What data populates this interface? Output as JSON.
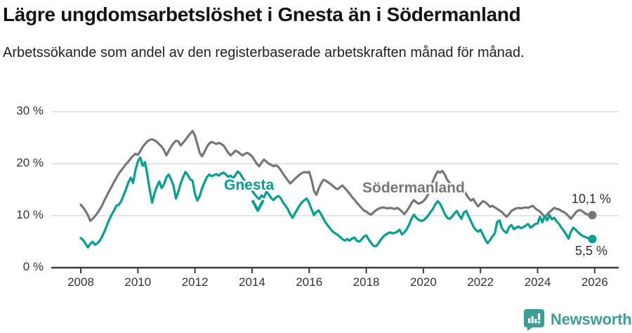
{
  "chart_data": {
    "type": "line",
    "title": "Lägre ungdomsarbetslöshet i Gnesta än i Södermanland",
    "subtitle": "Arbetssökande som andel av den registerbaserade arbetskraften månad för månad.",
    "grid": "horizontal",
    "ylim": [
      0,
      30
    ],
    "xlim": [
      2008,
      2026
    ],
    "x_start_year": 2008,
    "x_step": "month",
    "x_ticks": [
      2008,
      2010,
      2012,
      2014,
      2016,
      2018,
      2020,
      2022,
      2024,
      2026
    ],
    "y_ticks": [
      {
        "value": 30,
        "label": "30 %"
      },
      {
        "value": 20,
        "label": "20 %"
      },
      {
        "value": 10,
        "label": "10 %"
      },
      {
        "value": 0,
        "label": "0 %"
      }
    ],
    "legend_position": "inline-annotations",
    "series": [
      {
        "name": "Södermanland",
        "color": "#767676",
        "end_value": 10.1,
        "end_label": "10,1 %",
        "values": [
          12.1,
          11.6,
          10.9,
          10.1,
          9.0,
          9.4,
          9.9,
          10.5,
          11.2,
          12.0,
          13.0,
          13.9,
          14.8,
          15.6,
          16.5,
          17.3,
          18.1,
          18.7,
          19.3,
          19.9,
          20.4,
          21.0,
          21.5,
          21.9,
          21.7,
          22.4,
          23.2,
          23.8,
          24.3,
          24.6,
          24.7,
          24.5,
          24.2,
          23.7,
          23.3,
          22.6,
          21.6,
          22.5,
          23.3,
          23.9,
          24.4,
          24.3,
          23.5,
          24.0,
          24.6,
          25.2,
          25.8,
          26.3,
          25.4,
          23.8,
          22.1,
          21.4,
          22.3,
          23.2,
          23.9,
          24.2,
          24.0,
          23.8,
          24.0,
          23.8,
          23.5,
          22.8,
          22.1,
          21.6,
          22.0,
          22.5,
          22.3,
          21.9,
          21.6,
          21.9,
          22.1,
          21.8,
          21.4,
          20.7,
          20.0,
          19.5,
          20.2,
          20.8,
          20.4,
          20.0,
          19.8,
          19.5,
          19.7,
          19.4,
          18.8,
          18.1,
          17.4,
          16.8,
          16.2,
          16.6,
          17.1,
          17.5,
          17.9,
          18.2,
          18.4,
          18.3,
          18.4,
          16.9,
          14.8,
          14.0,
          15.2,
          16.2,
          16.9,
          16.7,
          16.4,
          16.1,
          15.7,
          15.3,
          15.1,
          15.5,
          15.8,
          15.3,
          14.8,
          14.2,
          13.6,
          13.1,
          12.5,
          12.0,
          11.5,
          11.0,
          10.8,
          10.4,
          10.2,
          10.6,
          11.0,
          11.3,
          11.5,
          11.6,
          11.5,
          11.4,
          11.5,
          11.4,
          11.3,
          11.5,
          11.2,
          10.8,
          10.3,
          10.9,
          11.6,
          12.4,
          13.0,
          12.6,
          12.3,
          12.5,
          12.8,
          13.3,
          14.1,
          15.3,
          16.6,
          17.7,
          18.5,
          18.3,
          18.6,
          17.9,
          16.9,
          16.3,
          15.9,
          15.7,
          15.5,
          15.6,
          15.4,
          14.8,
          14.1,
          13.4,
          12.9,
          13.2,
          12.4,
          11.8,
          12.3,
          12.8,
          12.6,
          12.2,
          11.7,
          11.9,
          11.6,
          11.3,
          11.0,
          10.7,
          10.2,
          9.8,
          10.3,
          10.9,
          11.2,
          11.4,
          11.5,
          11.4,
          11.5,
          11.6,
          11.5,
          11.7,
          11.9,
          11.4,
          11.1,
          10.8,
          10.3,
          9.7,
          10.2,
          10.7,
          11.1,
          11.5,
          11.3,
          11.2,
          10.9,
          10.7,
          10.4,
          9.9,
          9.4,
          10.0,
          10.6,
          11.0,
          11.1,
          10.8,
          10.4,
          10.2,
          10.1,
          10.1
        ]
      },
      {
        "name": "Gnesta",
        "color": "#00a192",
        "end_value": 5.5,
        "end_label": "5,5 %",
        "values": [
          5.7,
          5.3,
          4.6,
          3.9,
          4.6,
          5.0,
          4.4,
          4.7,
          5.2,
          6.0,
          7.0,
          8.2,
          9.3,
          10.2,
          11.0,
          11.9,
          12.1,
          12.8,
          13.9,
          15.1,
          16.4,
          17.3,
          16.3,
          18.8,
          20.4,
          21.2,
          19.6,
          20.3,
          17.8,
          14.9,
          12.5,
          14.3,
          15.6,
          16.6,
          15.3,
          16.1,
          17.4,
          17.9,
          16.9,
          15.7,
          13.3,
          14.6,
          16.2,
          17.4,
          18.4,
          17.8,
          17.0,
          16.7,
          14.2,
          12.9,
          13.8,
          15.3,
          16.4,
          17.4,
          17.9,
          17.6,
          17.8,
          18.0,
          17.7,
          18.1,
          18.3,
          17.9,
          17.5,
          17.7,
          17.2,
          17.8,
          18.5,
          18.1,
          17.3,
          16.6,
          15.9,
          15.3,
          14.8,
          14.2,
          13.6,
          13.2,
          13.9,
          13.5,
          14.6,
          14.1,
          13.4,
          13.0,
          13.5,
          13.8,
          13.4,
          12.6,
          11.9,
          11.3,
          10.3,
          9.6,
          10.4,
          11.2,
          12.0,
          12.6,
          13.0,
          13.3,
          12.4,
          11.2,
          10.1,
          10.7,
          11.0,
          10.3,
          9.4,
          8.6,
          8.0,
          7.4,
          6.9,
          6.6,
          6.3,
          5.9,
          5.5,
          5.2,
          5.5,
          5.2,
          5.6,
          5.8,
          5.2,
          5.0,
          5.4,
          6.0,
          6.2,
          5.4,
          4.8,
          4.2,
          4.1,
          4.6,
          5.3,
          5.9,
          6.3,
          6.6,
          6.8,
          6.6,
          6.7,
          6.9,
          7.3,
          6.4,
          6.8,
          7.4,
          8.3,
          9.4,
          10.2,
          9.6,
          9.2,
          9.0,
          9.1,
          9.5,
          10.0,
          10.7,
          11.3,
          12.2,
          12.8,
          12.3,
          11.4,
          10.3,
          9.6,
          9.4,
          9.8,
          10.4,
          10.9,
          10.1,
          9.4,
          10.6,
          10.9,
          9.9,
          8.9,
          7.9,
          7.3,
          6.9,
          7.3,
          6.4,
          5.4,
          4.7,
          5.3,
          6.0,
          6.6,
          8.8,
          9.1,
          7.6,
          7.0,
          6.7,
          7.8,
          8.2,
          7.4,
          7.7,
          7.9,
          7.6,
          7.8,
          8.1,
          8.4,
          7.7,
          8.0,
          8.4,
          8.5,
          9.8,
          8.7,
          9.9,
          9.1,
          10.1,
          9.3,
          9.6,
          8.9,
          8.4,
          7.7,
          7.1,
          6.4,
          5.6,
          6.9,
          7.7,
          7.3,
          6.8,
          6.4,
          6.1,
          5.9,
          5.7,
          5.6,
          5.5
        ]
      }
    ],
    "annotation_arrow": {
      "series": "Gnesta",
      "year": 2014.2,
      "points_to_pct": 11.0
    }
  },
  "axis_colors": {
    "grid": "#dcdcdc",
    "axis": "#3d3d3d",
    "tick_text": "#333333"
  },
  "brand": {
    "name": "Newsworthy",
    "color": "#3e9d96"
  }
}
